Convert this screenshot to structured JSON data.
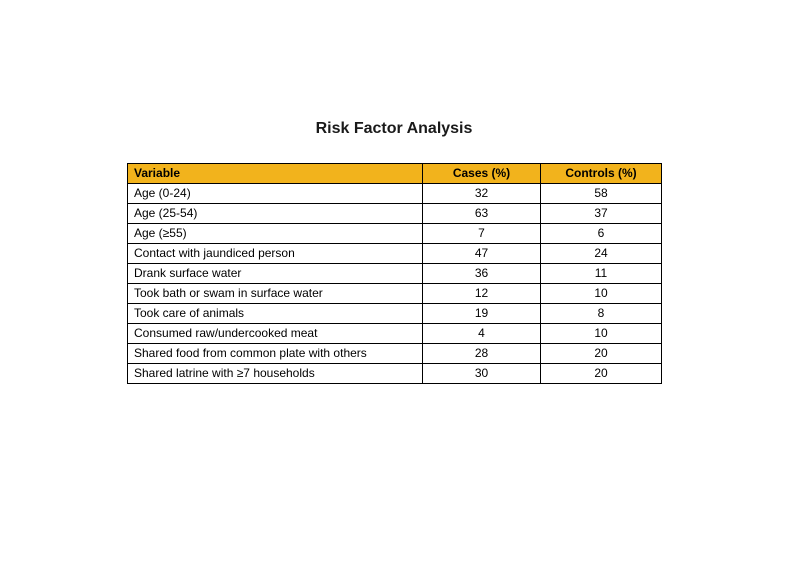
{
  "page": {
    "title": "Risk Factor Analysis"
  },
  "colors": {
    "header_bg": "#F2B31C",
    "border": "#000000",
    "text": "#000000"
  },
  "table": {
    "columns": [
      "Variable",
      "Cases (%)",
      "Controls (%)"
    ],
    "rows": [
      {
        "variable": "Age (0-24)",
        "cases": "32",
        "controls": "58"
      },
      {
        "variable": "Age (25-54)",
        "cases": "63",
        "controls": "37"
      },
      {
        "variable": "Age (≥55)",
        "cases": "7",
        "controls": "6"
      },
      {
        "variable": "Contact with jaundiced person",
        "cases": "47",
        "controls": "24"
      },
      {
        "variable": "Drank surface water",
        "cases": "36",
        "controls": "11"
      },
      {
        "variable": "Took bath or swam in surface water",
        "cases": "12",
        "controls": "10"
      },
      {
        "variable": "Took care of animals",
        "cases": "19",
        "controls": "8"
      },
      {
        "variable": "Consumed raw/undercooked meat",
        "cases": "4",
        "controls": "10"
      },
      {
        "variable": "Shared food from common plate with others",
        "cases": "28",
        "controls": "20"
      },
      {
        "variable": "Shared latrine with ≥7 households",
        "cases": "30",
        "controls": "20"
      }
    ]
  },
  "chart_data": {
    "type": "table",
    "title": "Risk Factor Analysis",
    "columns": [
      "Variable",
      "Cases (%)",
      "Controls (%)"
    ],
    "rows": [
      [
        "Age (0-24)",
        32,
        58
      ],
      [
        "Age (25-54)",
        63,
        37
      ],
      [
        "Age (≥55)",
        7,
        6
      ],
      [
        "Contact with jaundiced person",
        47,
        24
      ],
      [
        "Drank surface water",
        36,
        11
      ],
      [
        "Took bath or swam in surface water",
        12,
        10
      ],
      [
        "Took care of animals",
        19,
        8
      ],
      [
        "Consumed raw/undercooked meat",
        4,
        10
      ],
      [
        "Shared food from common plate with others",
        28,
        20
      ],
      [
        "Shared latrine with ≥7 households",
        30,
        20
      ]
    ]
  }
}
